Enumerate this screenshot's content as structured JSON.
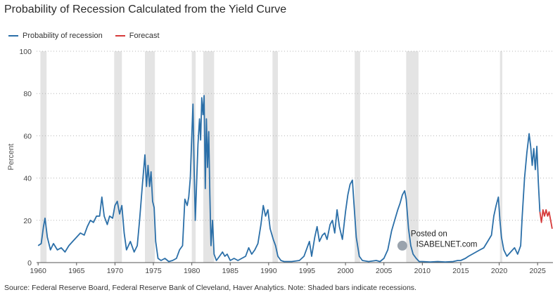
{
  "chart_data": {
    "type": "line",
    "title": "Probability of Recession Calculated from the Yield Curve",
    "xlabel": "",
    "ylabel": "Percent",
    "ylim": [
      0,
      100
    ],
    "xlim": [
      1959.8,
      2027
    ],
    "x_ticks": [
      1960,
      1965,
      1970,
      1975,
      1980,
      1985,
      1990,
      1995,
      2000,
      2005,
      2010,
      2015,
      2020,
      2025
    ],
    "y_ticks": [
      0,
      20,
      40,
      60,
      80,
      100
    ],
    "grid": "horizontal-dotted",
    "legend": "top-left",
    "recessions": [
      [
        1960.3,
        1961.1
      ],
      [
        1969.9,
        1970.9
      ],
      [
        1973.9,
        1975.2
      ],
      [
        1980.0,
        1980.5
      ],
      [
        1981.5,
        1982.9
      ],
      [
        1990.5,
        1991.2
      ],
      [
        2001.2,
        2001.9
      ],
      [
        2007.9,
        2009.5
      ],
      [
        2020.1,
        2020.4
      ]
    ],
    "series": [
      {
        "name": "Probability of recession",
        "color": "#2b6fa8",
        "points": [
          [
            1960.0,
            8
          ],
          [
            1960.4,
            9
          ],
          [
            1960.7,
            17
          ],
          [
            1960.9,
            21
          ],
          [
            1961.2,
            12
          ],
          [
            1961.6,
            6
          ],
          [
            1962.0,
            9
          ],
          [
            1962.5,
            6
          ],
          [
            1963.0,
            7
          ],
          [
            1963.5,
            5
          ],
          [
            1964.0,
            8
          ],
          [
            1964.5,
            10
          ],
          [
            1965.0,
            12
          ],
          [
            1965.5,
            14
          ],
          [
            1966.0,
            13
          ],
          [
            1966.4,
            17
          ],
          [
            1966.8,
            20
          ],
          [
            1967.2,
            19
          ],
          [
            1967.6,
            22
          ],
          [
            1968.0,
            22
          ],
          [
            1968.3,
            31
          ],
          [
            1968.6,
            22
          ],
          [
            1969.0,
            18
          ],
          [
            1969.3,
            22
          ],
          [
            1969.7,
            21
          ],
          [
            1970.0,
            27
          ],
          [
            1970.3,
            29
          ],
          [
            1970.6,
            23
          ],
          [
            1970.9,
            27
          ],
          [
            1971.2,
            14
          ],
          [
            1971.5,
            6
          ],
          [
            1972.0,
            10
          ],
          [
            1972.5,
            5
          ],
          [
            1972.9,
            8
          ],
          [
            1973.2,
            20
          ],
          [
            1973.6,
            38
          ],
          [
            1973.9,
            51
          ],
          [
            1974.1,
            36
          ],
          [
            1974.3,
            46
          ],
          [
            1974.5,
            36
          ],
          [
            1974.7,
            43
          ],
          [
            1974.9,
            29
          ],
          [
            1975.1,
            26
          ],
          [
            1975.3,
            10
          ],
          [
            1975.6,
            2
          ],
          [
            1976.0,
            1
          ],
          [
            1976.5,
            2
          ],
          [
            1977.0,
            0.5
          ],
          [
            1977.5,
            1
          ],
          [
            1978.0,
            2
          ],
          [
            1978.4,
            6
          ],
          [
            1978.8,
            8
          ],
          [
            1979.1,
            30
          ],
          [
            1979.4,
            27
          ],
          [
            1979.6,
            31
          ],
          [
            1979.8,
            40
          ],
          [
            1980.0,
            60
          ],
          [
            1980.15,
            75
          ],
          [
            1980.3,
            45
          ],
          [
            1980.45,
            20
          ],
          [
            1980.6,
            35
          ],
          [
            1980.8,
            56
          ],
          [
            1981.0,
            68
          ],
          [
            1981.15,
            58
          ],
          [
            1981.3,
            78
          ],
          [
            1981.45,
            70
          ],
          [
            1981.6,
            79
          ],
          [
            1981.75,
            35
          ],
          [
            1981.9,
            68
          ],
          [
            1982.05,
            45
          ],
          [
            1982.2,
            62
          ],
          [
            1982.35,
            32
          ],
          [
            1982.5,
            8
          ],
          [
            1982.7,
            20
          ],
          [
            1982.9,
            4
          ],
          [
            1983.2,
            1
          ],
          [
            1983.6,
            3
          ],
          [
            1984.0,
            5
          ],
          [
            1984.3,
            3
          ],
          [
            1984.6,
            4
          ],
          [
            1985.0,
            1
          ],
          [
            1985.5,
            2
          ],
          [
            1986.0,
            1
          ],
          [
            1986.5,
            2
          ],
          [
            1987.0,
            3
          ],
          [
            1987.4,
            7
          ],
          [
            1987.8,
            4
          ],
          [
            1988.2,
            6
          ],
          [
            1988.6,
            9
          ],
          [
            1989.0,
            18
          ],
          [
            1989.3,
            27
          ],
          [
            1989.6,
            22
          ],
          [
            1989.9,
            25
          ],
          [
            1990.2,
            16
          ],
          [
            1990.6,
            11
          ],
          [
            1990.9,
            8
          ],
          [
            1991.2,
            3
          ],
          [
            1991.6,
            1
          ],
          [
            1992.0,
            0.5
          ],
          [
            1993.0,
            0.5
          ],
          [
            1994.0,
            1
          ],
          [
            1994.6,
            3
          ],
          [
            1995.0,
            7
          ],
          [
            1995.3,
            10
          ],
          [
            1995.6,
            3
          ],
          [
            1996.0,
            12
          ],
          [
            1996.3,
            17
          ],
          [
            1996.6,
            10
          ],
          [
            1997.0,
            13
          ],
          [
            1997.3,
            14
          ],
          [
            1997.6,
            11
          ],
          [
            1998.0,
            18
          ],
          [
            1998.3,
            20
          ],
          [
            1998.6,
            14
          ],
          [
            1998.9,
            25
          ],
          [
            1999.2,
            17
          ],
          [
            1999.6,
            11
          ],
          [
            2000.0,
            24
          ],
          [
            2000.3,
            32
          ],
          [
            2000.6,
            37
          ],
          [
            2000.9,
            39
          ],
          [
            2001.1,
            28
          ],
          [
            2001.4,
            12
          ],
          [
            2001.8,
            3
          ],
          [
            2002.2,
            1
          ],
          [
            2003.0,
            0.5
          ],
          [
            2004.0,
            1
          ],
          [
            2004.5,
            0.5
          ],
          [
            2005.0,
            2
          ],
          [
            2005.5,
            6
          ],
          [
            2006.0,
            15
          ],
          [
            2006.4,
            20
          ],
          [
            2006.8,
            25
          ],
          [
            2007.1,
            28
          ],
          [
            2007.4,
            32
          ],
          [
            2007.7,
            34
          ],
          [
            2007.9,
            30
          ],
          [
            2008.2,
            16
          ],
          [
            2008.5,
            8
          ],
          [
            2008.8,
            4
          ],
          [
            2009.2,
            2
          ],
          [
            2009.6,
            0.5
          ],
          [
            2010.0,
            0.5
          ],
          [
            2011.0,
            0.3
          ],
          [
            2012.0,
            0.5
          ],
          [
            2013.0,
            0.3
          ],
          [
            2014.0,
            0.5
          ],
          [
            2014.6,
            1
          ],
          [
            2015.0,
            1
          ],
          [
            2015.6,
            2
          ],
          [
            2016.0,
            3
          ],
          [
            2016.5,
            4
          ],
          [
            2017.0,
            5
          ],
          [
            2017.5,
            6
          ],
          [
            2018.0,
            7
          ],
          [
            2018.5,
            10
          ],
          [
            2019.0,
            13
          ],
          [
            2019.3,
            22
          ],
          [
            2019.6,
            27
          ],
          [
            2019.9,
            31
          ],
          [
            2020.1,
            20
          ],
          [
            2020.3,
            12
          ],
          [
            2020.6,
            6
          ],
          [
            2021.0,
            3
          ],
          [
            2021.5,
            5
          ],
          [
            2022.0,
            7
          ],
          [
            2022.4,
            4
          ],
          [
            2022.8,
            8
          ],
          [
            2023.0,
            22
          ],
          [
            2023.3,
            40
          ],
          [
            2023.6,
            52
          ],
          [
            2023.9,
            61
          ],
          [
            2024.1,
            55
          ],
          [
            2024.3,
            46
          ],
          [
            2024.5,
            54
          ],
          [
            2024.7,
            44
          ],
          [
            2024.9,
            55
          ],
          [
            2025.1,
            38
          ],
          [
            2025.3,
            24
          ]
        ]
      },
      {
        "name": "Forecast",
        "color": "#d63a3a",
        "points": [
          [
            2025.3,
            24
          ],
          [
            2025.5,
            19
          ],
          [
            2025.7,
            25
          ],
          [
            2025.9,
            22
          ],
          [
            2026.1,
            25
          ],
          [
            2026.3,
            22
          ],
          [
            2026.5,
            24
          ],
          [
            2026.7,
            20
          ],
          [
            2026.9,
            16
          ]
        ]
      }
    ]
  },
  "source_note": "Source: Federal Reserve Board, Federal Reserve Bank of Cleveland, Haver Analytics. Note: Shaded bars indicate recessions.",
  "watermark": {
    "line1": "Posted on",
    "line2": "ISABELNET.com"
  }
}
